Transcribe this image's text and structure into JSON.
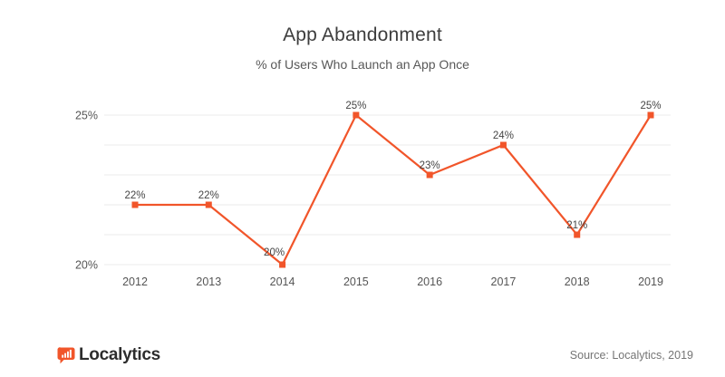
{
  "header": {
    "title": "App Abandonment",
    "subtitle": "% of Users Who Launch an App Once"
  },
  "chart_data": {
    "type": "line",
    "title": "App Abandonment",
    "subtitle": "% of Users Who Launch an App Once",
    "x": [
      "2012",
      "2013",
      "2014",
      "2015",
      "2016",
      "2017",
      "2018",
      "2019"
    ],
    "values": [
      22,
      22,
      20,
      25,
      23,
      24,
      21,
      25
    ],
    "data_labels": [
      "22%",
      "22%",
      "20%",
      "25%",
      "23%",
      "24%",
      "21%",
      "25%"
    ],
    "unit": "%",
    "ylim": [
      20,
      25
    ],
    "grid": true,
    "grid_interval": 1,
    "ytick_values": [
      25,
      20
    ],
    "ytick_labels": [
      "25%",
      "20%"
    ],
    "legend": "none",
    "marker": "square",
    "line_color": "#F1552A"
  },
  "footer": {
    "brand": "Localytics",
    "logo_icon": "localytics-speech-bubble-bar-chart-icon",
    "source": "Source: Localytics, 2019"
  },
  "colors": {
    "accent_orange": "#F1552A",
    "gridline": "#EBEBEB",
    "title_text": "#3D3D3D",
    "subtitle_text": "#585858",
    "axis_text": "#555555",
    "data_label_text": "#454545",
    "source_text": "#757575",
    "brand_text": "#2D2D2D",
    "background": "#FFFFFF"
  }
}
